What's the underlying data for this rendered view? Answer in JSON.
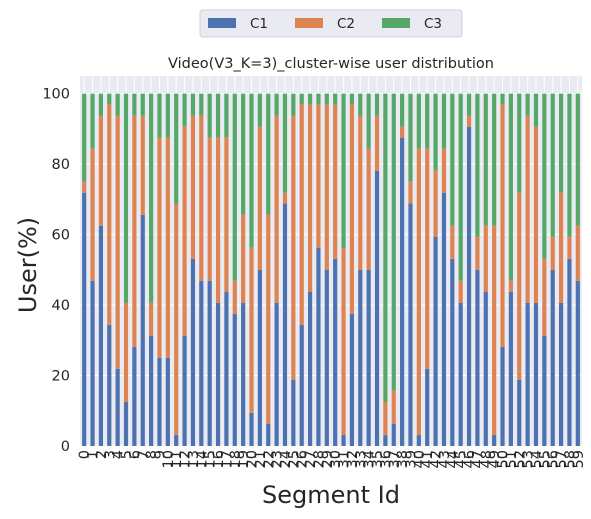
{
  "chart_data": {
    "type": "bar",
    "stacked": true,
    "title": "Video(V3_K=3)_cluster-wise user distribution",
    "xlabel": "Segment Id",
    "ylabel": "User(%)",
    "ylim": [
      0,
      105
    ],
    "yticks": [
      0,
      20,
      40,
      60,
      80,
      100
    ],
    "grid": true,
    "legend_position": "top-center",
    "categories": [
      "0",
      "1",
      "2",
      "3",
      "4",
      "5",
      "6",
      "7",
      "8",
      "9",
      "10",
      "11",
      "12",
      "13",
      "14",
      "15",
      "16",
      "17",
      "18",
      "19",
      "20",
      "21",
      "22",
      "23",
      "24",
      "25",
      "26",
      "27",
      "28",
      "29",
      "30",
      "31",
      "32",
      "33",
      "34",
      "35",
      "36",
      "37",
      "38",
      "39",
      "40",
      "41",
      "42",
      "43",
      "44",
      "45",
      "46",
      "47",
      "48",
      "49",
      "50",
      "51",
      "52",
      "53",
      "54",
      "55",
      "56",
      "57",
      "58",
      "59"
    ],
    "series": [
      {
        "name": "C1",
        "color": "#4c72b0",
        "values": [
          71.9,
          46.9,
          62.5,
          34.4,
          21.9,
          12.5,
          28.1,
          65.6,
          31.3,
          25.0,
          25.0,
          3.1,
          31.3,
          53.1,
          46.9,
          46.9,
          40.6,
          43.8,
          37.5,
          40.6,
          9.4,
          50.0,
          6.3,
          40.6,
          68.8,
          18.8,
          34.4,
          43.8,
          56.3,
          50.0,
          53.1,
          3.1,
          37.5,
          50.0,
          50.0,
          78.1,
          3.1,
          6.3,
          87.5,
          68.8,
          3.1,
          21.9,
          59.4,
          71.9,
          53.1,
          40.6,
          90.6,
          50.0,
          43.8,
          3.1,
          28.1,
          43.8,
          18.8,
          40.6,
          40.6,
          31.3,
          50.0,
          40.6,
          53.1,
          46.9
        ]
      },
      {
        "name": "C2",
        "color": "#dd8452",
        "values": [
          3.1,
          37.5,
          31.3,
          62.5,
          71.9,
          28.1,
          65.6,
          28.1,
          9.4,
          62.5,
          62.5,
          65.6,
          59.4,
          40.6,
          46.9,
          40.6,
          46.9,
          43.8,
          9.4,
          25.0,
          46.9,
          40.6,
          59.4,
          53.1,
          3.1,
          75.0,
          62.5,
          53.1,
          40.6,
          46.9,
          43.8,
          53.1,
          59.4,
          43.8,
          34.4,
          15.6,
          9.4,
          9.4,
          3.1,
          6.3,
          81.3,
          62.5,
          18.8,
          12.5,
          9.4,
          6.3,
          3.1,
          9.4,
          18.8,
          59.4,
          68.8,
          3.1,
          53.1,
          53.1,
          50.0,
          21.9,
          9.4,
          31.3,
          6.3,
          15.6
        ]
      },
      {
        "name": "C3",
        "color": "#55a868",
        "values": [
          25.0,
          15.6,
          6.2,
          3.1,
          6.2,
          59.4,
          6.3,
          6.3,
          59.3,
          12.5,
          12.5,
          31.3,
          9.3,
          6.3,
          6.2,
          12.5,
          12.5,
          12.4,
          53.1,
          34.4,
          43.7,
          9.4,
          34.3,
          6.3,
          28.1,
          6.2,
          3.1,
          3.1,
          3.1,
          3.1,
          3.1,
          43.8,
          3.1,
          6.2,
          15.6,
          6.3,
          87.5,
          84.3,
          9.4,
          24.9,
          15.6,
          15.6,
          21.8,
          15.6,
          37.5,
          53.1,
          6.3,
          40.6,
          37.4,
          37.5,
          3.1,
          53.1,
          28.1,
          6.3,
          9.4,
          46.8,
          40.6,
          28.1,
          40.6,
          37.5
        ]
      }
    ]
  }
}
